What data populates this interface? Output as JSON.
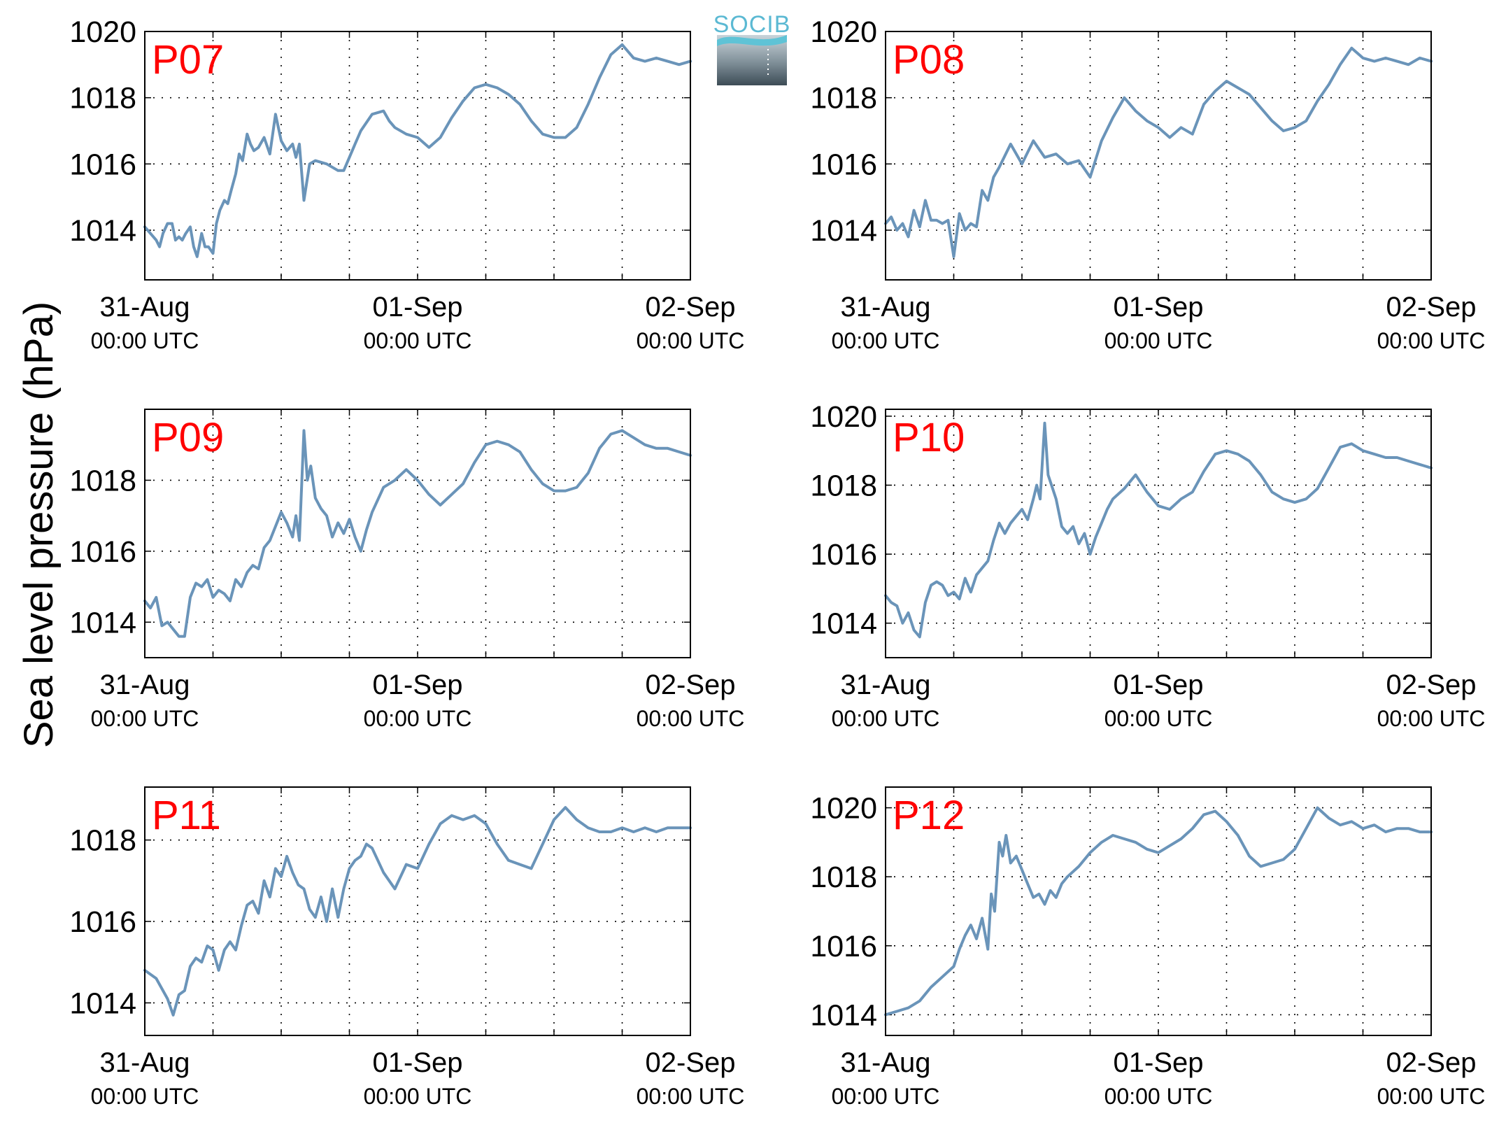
{
  "figure": {
    "ylabel": "Sea level pressure (hPa)",
    "logo_text": "SOCIB",
    "line_color": "#6a94b9",
    "title_color": "#ff0000",
    "grid_style": "dotted",
    "x_tick_dates": [
      "31-Aug",
      "01-Sep",
      "02-Sep"
    ],
    "x_tick_time": "00:00 UTC"
  },
  "chart_data": [
    {
      "type": "line",
      "title": "P07",
      "xlabel": "",
      "ylabel": "Sea level pressure (hPa)",
      "xlim": [
        0,
        48
      ],
      "ylim": [
        1012.5,
        1020
      ],
      "yticks": [
        1014,
        1016,
        1018,
        1020
      ],
      "grid": true,
      "series": [
        {
          "x": [
            0,
            0.5,
            1,
            1.3,
            1.6,
            2,
            2.4,
            2.7,
            3,
            3.3,
            3.6,
            4,
            4.3,
            4.6,
            5,
            5.3,
            5.6,
            6,
            6.3,
            6.6,
            7,
            7.3,
            7.6,
            8,
            8.3,
            8.6,
            9,
            9.3,
            9.6,
            10,
            10.5,
            11,
            11.5,
            12,
            12.5,
            13,
            13.3,
            13.6,
            14,
            14.5,
            15,
            16,
            17,
            17.5,
            18,
            18.5,
            19,
            20,
            21,
            21.5,
            22,
            23,
            24,
            25,
            26,
            27,
            28,
            29,
            30,
            31,
            32,
            33,
            34,
            35,
            36,
            37,
            38,
            39,
            40,
            41,
            42,
            43,
            44,
            45,
            46,
            47,
            48
          ],
          "y": [
            1014.1,
            1013.9,
            1013.7,
            1013.5,
            1013.9,
            1014.2,
            1014.2,
            1013.7,
            1013.8,
            1013.7,
            1013.9,
            1014.1,
            1013.5,
            1013.2,
            1013.9,
            1013.5,
            1013.5,
            1013.3,
            1014.2,
            1014.6,
            1014.9,
            1014.8,
            1015.2,
            1015.7,
            1016.3,
            1016.1,
            1016.9,
            1016.6,
            1016.4,
            1016.5,
            1016.8,
            1016.3,
            1017.5,
            1016.7,
            1016.4,
            1016.6,
            1016.2,
            1016.6,
            1014.9,
            1016.0,
            1016.1,
            1016.0,
            1015.8,
            1015.8,
            1016.2,
            1016.6,
            1017.0,
            1017.5,
            1017.6,
            1017.3,
            1017.1,
            1016.9,
            1016.8,
            1016.5,
            1016.8,
            1017.4,
            1017.9,
            1018.3,
            1018.4,
            1018.3,
            1018.1,
            1017.8,
            1017.3,
            1016.9,
            1016.8,
            1016.8,
            1017.1,
            1017.8,
            1018.6,
            1019.3,
            1019.6,
            1019.2,
            1019.1,
            1019.2,
            1019.1,
            1019.0,
            1019.1
          ]
        }
      ]
    },
    {
      "type": "line",
      "title": "P08",
      "xlabel": "",
      "ylabel": "Sea level pressure (hPa)",
      "xlim": [
        0,
        48
      ],
      "ylim": [
        1012.5,
        1020
      ],
      "yticks": [
        1014,
        1016,
        1018,
        1020
      ],
      "grid": true,
      "series": [
        {
          "x": [
            0,
            0.5,
            1,
            1.5,
            2,
            2.5,
            3,
            3.5,
            4,
            4.5,
            5,
            5.5,
            6,
            6.5,
            7,
            7.5,
            8,
            8.5,
            9,
            9.5,
            10,
            11,
            12,
            13,
            14,
            15,
            16,
            17,
            18,
            19,
            20,
            21,
            22,
            23,
            24,
            25,
            26,
            27,
            28,
            29,
            30,
            31,
            32,
            33,
            34,
            35,
            36,
            37,
            38,
            39,
            40,
            41,
            42,
            43,
            44,
            45,
            46,
            47,
            48
          ],
          "y": [
            1014.2,
            1014.4,
            1014.0,
            1014.2,
            1013.8,
            1014.6,
            1014.1,
            1014.9,
            1014.3,
            1014.3,
            1014.2,
            1014.3,
            1013.2,
            1014.5,
            1014.0,
            1014.2,
            1014.1,
            1015.2,
            1014.9,
            1015.6,
            1015.9,
            1016.6,
            1016.0,
            1016.7,
            1016.2,
            1016.3,
            1016.0,
            1016.1,
            1015.6,
            1016.7,
            1017.4,
            1018.0,
            1017.6,
            1017.3,
            1017.1,
            1016.8,
            1017.1,
            1016.9,
            1017.8,
            1018.2,
            1018.5,
            1018.3,
            1018.1,
            1017.7,
            1017.3,
            1017.0,
            1017.1,
            1017.3,
            1017.9,
            1018.4,
            1019.0,
            1019.5,
            1019.2,
            1019.1,
            1019.2,
            1019.1,
            1019.0,
            1019.2,
            1019.1
          ]
        }
      ]
    },
    {
      "type": "line",
      "title": "P09",
      "xlabel": "",
      "ylabel": "Sea level pressure (hPa)",
      "xlim": [
        0,
        48
      ],
      "ylim": [
        1013,
        1020
      ],
      "yticks": [
        1014,
        1016,
        1018
      ],
      "grid": true,
      "series": [
        {
          "x": [
            0,
            0.5,
            1,
            1.5,
            2,
            2.5,
            3,
            3.5,
            4,
            4.5,
            5,
            5.5,
            6,
            6.5,
            7,
            7.5,
            8,
            8.5,
            9,
            9.5,
            10,
            10.5,
            11,
            11.5,
            12,
            12.5,
            13,
            13.3,
            13.6,
            14,
            14.3,
            14.6,
            15,
            15.5,
            16,
            16.5,
            17,
            17.5,
            18,
            18.5,
            19,
            19.5,
            20,
            21,
            22,
            23,
            24,
            25,
            26,
            27,
            28,
            29,
            30,
            31,
            32,
            33,
            34,
            35,
            36,
            37,
            38,
            39,
            40,
            41,
            42,
            43,
            44,
            45,
            46,
            47,
            48
          ],
          "y": [
            1014.6,
            1014.4,
            1014.7,
            1013.9,
            1014.0,
            1013.8,
            1013.6,
            1013.6,
            1014.7,
            1015.1,
            1015.0,
            1015.2,
            1014.7,
            1014.9,
            1014.8,
            1014.6,
            1015.2,
            1015.0,
            1015.4,
            1015.6,
            1015.5,
            1016.1,
            1016.3,
            1016.7,
            1017.1,
            1016.8,
            1016.4,
            1017.0,
            1016.3,
            1019.4,
            1018.0,
            1018.4,
            1017.5,
            1017.2,
            1017.0,
            1016.4,
            1016.8,
            1016.5,
            1016.9,
            1016.4,
            1016.0,
            1016.6,
            1017.1,
            1017.8,
            1018.0,
            1018.3,
            1018.0,
            1017.6,
            1017.3,
            1017.6,
            1017.9,
            1018.5,
            1019.0,
            1019.1,
            1019.0,
            1018.8,
            1018.3,
            1017.9,
            1017.7,
            1017.7,
            1017.8,
            1018.2,
            1018.9,
            1019.3,
            1019.4,
            1019.2,
            1019.0,
            1018.9,
            1018.9,
            1018.8,
            1018.7
          ]
        }
      ]
    },
    {
      "type": "line",
      "title": "P10",
      "xlabel": "",
      "ylabel": "Sea level pressure (hPa)",
      "xlim": [
        0,
        48
      ],
      "ylim": [
        1013,
        1020.2
      ],
      "yticks": [
        1014,
        1016,
        1018,
        1020
      ],
      "grid": true,
      "series": [
        {
          "x": [
            0,
            0.5,
            1,
            1.5,
            2,
            2.5,
            3,
            3.5,
            4,
            4.5,
            5,
            5.5,
            6,
            6.5,
            7,
            7.5,
            8,
            8.5,
            9,
            9.5,
            10,
            10.5,
            11,
            11.5,
            12,
            12.5,
            13,
            13.3,
            13.6,
            14,
            14.3,
            14.6,
            15,
            15.5,
            16,
            16.5,
            17,
            17.5,
            18,
            18.5,
            19,
            19.5,
            20,
            21,
            22,
            23,
            24,
            25,
            26,
            27,
            28,
            29,
            30,
            31,
            32,
            33,
            34,
            35,
            36,
            37,
            38,
            39,
            40,
            41,
            42,
            43,
            44,
            45,
            46,
            47,
            48
          ],
          "y": [
            1014.8,
            1014.6,
            1014.5,
            1014.0,
            1014.3,
            1013.8,
            1013.6,
            1014.6,
            1015.1,
            1015.2,
            1015.1,
            1014.8,
            1014.9,
            1014.7,
            1015.3,
            1014.9,
            1015.4,
            1015.6,
            1015.8,
            1016.4,
            1016.9,
            1016.6,
            1016.9,
            1017.1,
            1017.3,
            1017.0,
            1017.6,
            1018.0,
            1017.6,
            1019.8,
            1018.3,
            1018.0,
            1017.6,
            1016.8,
            1016.6,
            1016.8,
            1016.3,
            1016.6,
            1016.0,
            1016.5,
            1016.9,
            1017.3,
            1017.6,
            1017.9,
            1018.3,
            1017.8,
            1017.4,
            1017.3,
            1017.6,
            1017.8,
            1018.4,
            1018.9,
            1019.0,
            1018.9,
            1018.7,
            1018.3,
            1017.8,
            1017.6,
            1017.5,
            1017.6,
            1017.9,
            1018.5,
            1019.1,
            1019.2,
            1019.0,
            1018.9,
            1018.8,
            1018.8,
            1018.7,
            1018.6,
            1018.5
          ]
        }
      ]
    },
    {
      "type": "line",
      "title": "P11",
      "xlabel": "",
      "ylabel": "Sea level pressure (hPa)",
      "xlim": [
        0,
        48
      ],
      "ylim": [
        1013.2,
        1019.3
      ],
      "yticks": [
        1014,
        1016,
        1018
      ],
      "grid": true,
      "series": [
        {
          "x": [
            0,
            1,
            2,
            2.5,
            3,
            3.5,
            4,
            4.5,
            5,
            5.5,
            6,
            6.5,
            7,
            7.5,
            8,
            8.5,
            9,
            9.5,
            10,
            10.5,
            11,
            11.5,
            12,
            12.5,
            13,
            13.5,
            14,
            14.5,
            15,
            15.5,
            16,
            16.5,
            17,
            17.5,
            18,
            18.5,
            19,
            19.5,
            20,
            21,
            22,
            23,
            24,
            25,
            26,
            27,
            28,
            29,
            30,
            31,
            32,
            33,
            34,
            35,
            36,
            37,
            38,
            39,
            40,
            41,
            42,
            43,
            44,
            45,
            46,
            47,
            48
          ],
          "y": [
            1014.8,
            1014.6,
            1014.1,
            1013.7,
            1014.2,
            1014.3,
            1014.9,
            1015.1,
            1015.0,
            1015.4,
            1015.3,
            1014.8,
            1015.3,
            1015.5,
            1015.3,
            1015.9,
            1016.4,
            1016.5,
            1016.2,
            1017.0,
            1016.6,
            1017.3,
            1017.1,
            1017.6,
            1017.2,
            1016.9,
            1016.8,
            1016.3,
            1016.1,
            1016.6,
            1016.0,
            1016.8,
            1016.1,
            1016.8,
            1017.3,
            1017.5,
            1017.6,
            1017.9,
            1017.8,
            1017.2,
            1016.8,
            1017.4,
            1017.3,
            1017.9,
            1018.4,
            1018.6,
            1018.5,
            1018.6,
            1018.4,
            1017.9,
            1017.5,
            1017.4,
            1017.3,
            1017.9,
            1018.5,
            1018.8,
            1018.5,
            1018.3,
            1018.2,
            1018.2,
            1018.3,
            1018.2,
            1018.3,
            1018.2,
            1018.3,
            1018.3,
            1018.3
          ]
        }
      ]
    },
    {
      "type": "line",
      "title": "P12",
      "xlabel": "",
      "ylabel": "Sea level pressure (hPa)",
      "xlim": [
        0,
        48
      ],
      "ylim": [
        1013.4,
        1020.6
      ],
      "yticks": [
        1014,
        1016,
        1018,
        1020
      ],
      "grid": true,
      "series": [
        {
          "x": [
            0,
            1,
            2,
            3,
            4,
            5,
            6,
            6.5,
            7,
            7.5,
            8,
            8.5,
            9,
            9.3,
            9.6,
            10,
            10.3,
            10.6,
            11,
            11.5,
            12,
            12.5,
            13,
            13.5,
            14,
            14.5,
            15,
            15.5,
            16,
            17,
            18,
            19,
            20,
            21,
            22,
            23,
            24,
            25,
            26,
            27,
            28,
            29,
            30,
            31,
            32,
            33,
            34,
            35,
            36,
            37,
            38,
            39,
            40,
            41,
            42,
            43,
            44,
            45,
            46,
            47,
            48
          ],
          "y": [
            1014.0,
            1014.1,
            1014.2,
            1014.4,
            1014.8,
            1015.1,
            1015.4,
            1015.9,
            1016.3,
            1016.6,
            1016.2,
            1016.8,
            1015.9,
            1017.5,
            1017.0,
            1019.0,
            1018.6,
            1019.2,
            1018.4,
            1018.6,
            1018.2,
            1017.8,
            1017.4,
            1017.5,
            1017.2,
            1017.6,
            1017.4,
            1017.8,
            1018.0,
            1018.3,
            1018.7,
            1019.0,
            1019.2,
            1019.1,
            1019.0,
            1018.8,
            1018.7,
            1018.9,
            1019.1,
            1019.4,
            1019.8,
            1019.9,
            1019.6,
            1019.2,
            1018.6,
            1018.3,
            1018.4,
            1018.5,
            1018.8,
            1019.4,
            1020.0,
            1019.7,
            1019.5,
            1019.6,
            1019.4,
            1019.5,
            1019.3,
            1019.4,
            1019.4,
            1019.3,
            1019.3
          ]
        }
      ]
    }
  ]
}
